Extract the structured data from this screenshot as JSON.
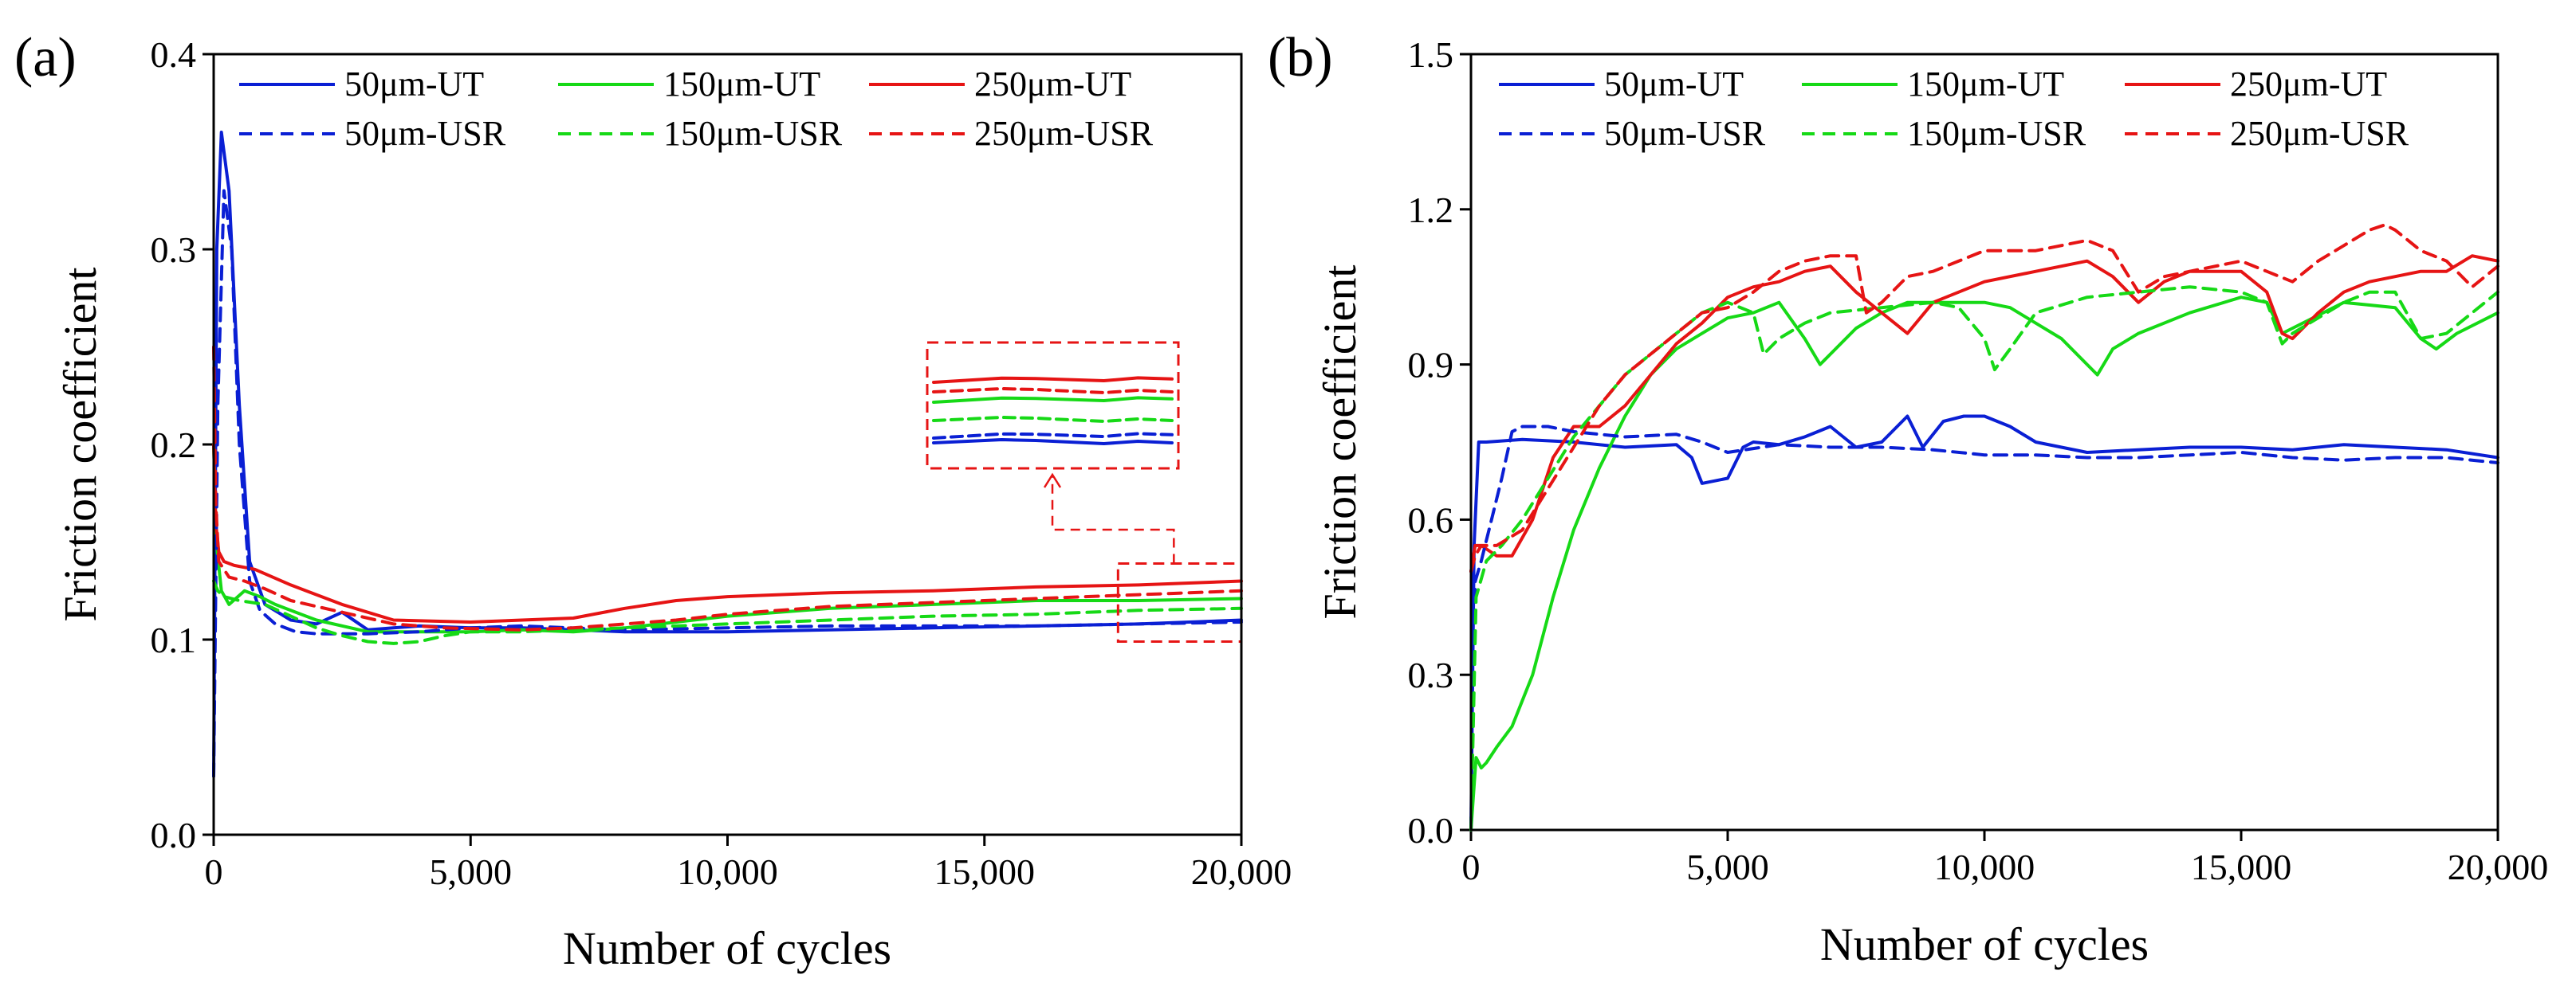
{
  "colors": {
    "UT50": "#0a1fd4",
    "UT150": "#16d916",
    "UT250": "#e61414",
    "annot": "#e61414"
  },
  "chart_data": [
    {
      "type": "line",
      "panel_label": "(a)",
      "xlabel": "Number of cycles",
      "ylabel": "Friction coefficient",
      "xlim": [
        0,
        20000
      ],
      "ylim": [
        0,
        0.4
      ],
      "xticks": [
        0,
        5000,
        10000,
        15000,
        20000
      ],
      "xtick_labels": [
        "0",
        "5,000",
        "10,000",
        "15,000",
        "20,000"
      ],
      "yticks": [
        0,
        0.1,
        0.2,
        0.3,
        0.4
      ],
      "ytick_labels": [
        "0.0",
        "0.1",
        "0.2",
        "0.3",
        "0.4"
      ],
      "legend_position": "top",
      "series": [
        {
          "name": "50μm-UT",
          "color": "#0a1fd4",
          "dash": "solid",
          "x": [
            0,
            60,
            150,
            300,
            500,
            700,
            1000,
            1500,
            2000,
            2500,
            3000,
            3500,
            4000,
            5000,
            6000,
            7000,
            8000,
            9000,
            10000,
            12000,
            14000,
            16000,
            18000,
            20000
          ],
          "y": [
            0.03,
            0.3,
            0.36,
            0.33,
            0.22,
            0.14,
            0.118,
            0.11,
            0.108,
            0.114,
            0.105,
            0.106,
            0.107,
            0.106,
            0.106,
            0.105,
            0.104,
            0.104,
            0.104,
            0.105,
            0.106,
            0.107,
            0.108,
            0.11
          ]
        },
        {
          "name": "150μm-UT",
          "color": "#16d916",
          "dash": "solid",
          "x": [
            0,
            50,
            150,
            300,
            600,
            900,
            1200,
            2000,
            3000,
            4000,
            5000,
            6000,
            7000,
            8000,
            9000,
            10000,
            12000,
            14000,
            16000,
            18000,
            20000
          ],
          "y": [
            0.2,
            0.15,
            0.125,
            0.118,
            0.125,
            0.122,
            0.118,
            0.11,
            0.104,
            0.104,
            0.104,
            0.105,
            0.104,
            0.106,
            0.109,
            0.112,
            0.116,
            0.118,
            0.12,
            0.12,
            0.121
          ]
        },
        {
          "name": "250μm-UT",
          "color": "#e61414",
          "dash": "solid",
          "x": [
            0,
            40,
            100,
            200,
            400,
            800,
            1500,
            2500,
            3500,
            5000,
            6000,
            7000,
            8000,
            9000,
            10000,
            12000,
            14000,
            16000,
            18000,
            20000
          ],
          "y": [
            0.2,
            0.16,
            0.145,
            0.14,
            0.138,
            0.136,
            0.128,
            0.118,
            0.11,
            0.109,
            0.11,
            0.111,
            0.116,
            0.12,
            0.122,
            0.124,
            0.125,
            0.127,
            0.128,
            0.13
          ]
        },
        {
          "name": "50μm-USR",
          "color": "#0a1fd4",
          "dash": "dashed",
          "x": [
            0,
            80,
            200,
            350,
            500,
            700,
            900,
            1200,
            1600,
            2000,
            3000,
            4000,
            5000,
            6000,
            8000,
            10000,
            12000,
            14000,
            16000,
            18000,
            20000
          ],
          "y": [
            0.03,
            0.22,
            0.33,
            0.3,
            0.2,
            0.13,
            0.115,
            0.108,
            0.104,
            0.103,
            0.103,
            0.104,
            0.106,
            0.107,
            0.105,
            0.106,
            0.107,
            0.107,
            0.107,
            0.108,
            0.109
          ]
        },
        {
          "name": "150μm-USR",
          "color": "#16d916",
          "dash": "dashed",
          "x": [
            0,
            80,
            200,
            500,
            1000,
            1500,
            2000,
            2500,
            3000,
            3500,
            4000,
            4500,
            5000,
            6000,
            7000,
            8000,
            9000,
            10000,
            12000,
            14000,
            16000,
            18000,
            20000
          ],
          "y": [
            0.13,
            0.125,
            0.122,
            0.12,
            0.118,
            0.112,
            0.106,
            0.102,
            0.099,
            0.098,
            0.099,
            0.102,
            0.104,
            0.104,
            0.105,
            0.106,
            0.107,
            0.108,
            0.11,
            0.112,
            0.113,
            0.115,
            0.116
          ]
        },
        {
          "name": "250μm-USR",
          "color": "#e61414",
          "dash": "dashed",
          "x": [
            0,
            40,
            100,
            300,
            600,
            1000,
            1500,
            2500,
            3500,
            4500,
            6000,
            7000,
            8000,
            9000,
            10000,
            12000,
            14000,
            16000,
            18000,
            20000
          ],
          "y": [
            0.25,
            0.17,
            0.14,
            0.132,
            0.13,
            0.126,
            0.12,
            0.114,
            0.108,
            0.106,
            0.105,
            0.106,
            0.108,
            0.11,
            0.113,
            0.117,
            0.119,
            0.121,
            0.123,
            0.125
          ]
        }
      ],
      "inset": {
        "note": "magnified view of the 17,500–20,000 cycle region",
        "order_top_to_bottom": [
          "250μm-UT",
          "250μm-USR",
          "150μm-UT",
          "150μm-USR",
          "50μm-USR",
          "50μm-UT"
        ]
      }
    },
    {
      "type": "line",
      "panel_label": "(b)",
      "xlabel": "Number of cycles",
      "ylabel": "Friction coefficient",
      "xlim": [
        0,
        20000
      ],
      "ylim": [
        0,
        1.5
      ],
      "xticks": [
        0,
        5000,
        10000,
        15000,
        20000
      ],
      "xtick_labels": [
        "0",
        "5,000",
        "10,000",
        "15,000",
        "20,000"
      ],
      "yticks": [
        0,
        0.3,
        0.6,
        0.9,
        1.2,
        1.5
      ],
      "ytick_labels": [
        "0.0",
        "0.3",
        "0.6",
        "0.9",
        "1.2",
        "1.5"
      ],
      "legend_position": "top",
      "series": [
        {
          "name": "50μm-UT",
          "color": "#0a1fd4",
          "dash": "solid",
          "x": [
            0,
            60,
            150,
            300,
            1000,
            2000,
            3000,
            4000,
            4300,
            4500,
            5000,
            5300,
            5500,
            6000,
            6500,
            7000,
            7500,
            8000,
            8500,
            8800,
            9200,
            9600,
            10000,
            10500,
            11000,
            12000,
            13000,
            14000,
            15000,
            16000,
            17000,
            18000,
            19000,
            20000
          ],
          "y": [
            0.0,
            0.55,
            0.75,
            0.75,
            0.755,
            0.75,
            0.74,
            0.745,
            0.72,
            0.67,
            0.68,
            0.74,
            0.75,
            0.745,
            0.76,
            0.78,
            0.74,
            0.75,
            0.8,
            0.74,
            0.79,
            0.8,
            0.8,
            0.78,
            0.75,
            0.73,
            0.735,
            0.74,
            0.74,
            0.735,
            0.745,
            0.74,
            0.735,
            0.72
          ]
        },
        {
          "name": "150μm-UT",
          "color": "#16d916",
          "dash": "solid",
          "x": [
            0,
            100,
            200,
            300,
            500,
            800,
            1200,
            1600,
            2000,
            2500,
            3000,
            3500,
            4000,
            4500,
            5000,
            5500,
            6000,
            6500,
            6800,
            7000,
            7500,
            8000,
            8500,
            9000,
            9500,
            10000,
            10500,
            11000,
            11500,
            12000,
            12200,
            12500,
            13000,
            14000,
            15000,
            15500,
            15800,
            16000,
            17000,
            18000,
            18500,
            18800,
            19200,
            20000
          ],
          "y": [
            0.0,
            0.14,
            0.12,
            0.13,
            0.16,
            0.2,
            0.3,
            0.45,
            0.58,
            0.7,
            0.8,
            0.88,
            0.93,
            0.96,
            0.99,
            1.0,
            1.02,
            0.95,
            0.9,
            0.92,
            0.97,
            1.0,
            1.02,
            1.02,
            1.02,
            1.02,
            1.01,
            0.98,
            0.95,
            0.9,
            0.88,
            0.93,
            0.96,
            1.0,
            1.03,
            1.02,
            0.96,
            0.97,
            1.02,
            1.01,
            0.95,
            0.93,
            0.96,
            1.0
          ]
        },
        {
          "name": "250μm-UT",
          "color": "#e61414",
          "dash": "solid",
          "x": [
            0,
            80,
            200,
            500,
            800,
            1200,
            1600,
            2000,
            2500,
            3000,
            3500,
            4000,
            4500,
            5000,
            5500,
            6000,
            6500,
            7000,
            7500,
            8000,
            8500,
            9000,
            10000,
            11000,
            12000,
            12500,
            13000,
            13500,
            14000,
            15000,
            15500,
            15800,
            16000,
            16500,
            17000,
            17500,
            18000,
            18500,
            19000,
            19500,
            20000
          ],
          "y": [
            0.5,
            0.55,
            0.55,
            0.53,
            0.53,
            0.6,
            0.72,
            0.78,
            0.78,
            0.82,
            0.88,
            0.94,
            0.98,
            1.03,
            1.05,
            1.06,
            1.08,
            1.09,
            1.04,
            1.0,
            0.96,
            1.02,
            1.06,
            1.08,
            1.1,
            1.07,
            1.02,
            1.06,
            1.08,
            1.08,
            1.04,
            0.96,
            0.95,
            1.0,
            1.04,
            1.06,
            1.07,
            1.08,
            1.08,
            1.11,
            1.1
          ]
        },
        {
          "name": "50μm-USR",
          "color": "#0a1fd4",
          "dash": "dashed",
          "x": [
            0,
            80,
            200,
            400,
            600,
            800,
            1000,
            1500,
            2000,
            3000,
            4000,
            4500,
            5000,
            6000,
            7000,
            8000,
            9000,
            10000,
            11000,
            12000,
            13000,
            14000,
            15000,
            16000,
            17000,
            18000,
            19000,
            20000
          ],
          "y": [
            0.0,
            0.48,
            0.52,
            0.6,
            0.68,
            0.77,
            0.78,
            0.78,
            0.77,
            0.76,
            0.765,
            0.75,
            0.73,
            0.745,
            0.74,
            0.74,
            0.735,
            0.725,
            0.725,
            0.72,
            0.72,
            0.725,
            0.73,
            0.72,
            0.715,
            0.72,
            0.72,
            0.71
          ]
        },
        {
          "name": "150μm-USR",
          "color": "#16d916",
          "dash": "dashed",
          "x": [
            0,
            100,
            300,
            600,
            1000,
            1500,
            2000,
            2500,
            3000,
            3500,
            4000,
            4500,
            5000,
            5500,
            5700,
            6000,
            6500,
            7000,
            8000,
            9000,
            9500,
            10000,
            10200,
            10500,
            11000,
            12000,
            13000,
            14000,
            15000,
            15500,
            15800,
            16000,
            17000,
            17500,
            18000,
            18500,
            19000,
            20000
          ],
          "y": [
            0.0,
            0.45,
            0.52,
            0.55,
            0.6,
            0.68,
            0.76,
            0.82,
            0.88,
            0.92,
            0.96,
            1.0,
            1.02,
            1.0,
            0.92,
            0.95,
            0.98,
            1.0,
            1.01,
            1.02,
            1.01,
            0.95,
            0.89,
            0.93,
            1.0,
            1.03,
            1.04,
            1.05,
            1.04,
            1.02,
            0.94,
            0.96,
            1.02,
            1.04,
            1.04,
            0.95,
            0.96,
            1.04
          ]
        },
        {
          "name": "250μm-USR",
          "color": "#e61414",
          "dash": "dashed",
          "x": [
            0,
            80,
            200,
            500,
            1000,
            1500,
            2000,
            2500,
            3000,
            3500,
            4000,
            4500,
            5000,
            5500,
            6000,
            6500,
            7000,
            7500,
            7700,
            8000,
            8500,
            9000,
            10000,
            11000,
            12000,
            12500,
            13000,
            13500,
            14000,
            15000,
            15500,
            16000,
            16500,
            17000,
            17500,
            17800,
            18000,
            18500,
            19000,
            19500,
            20000
          ],
          "y": [
            0.5,
            0.53,
            0.55,
            0.55,
            0.58,
            0.66,
            0.74,
            0.82,
            0.88,
            0.92,
            0.96,
            1.0,
            1.01,
            1.04,
            1.08,
            1.1,
            1.11,
            1.11,
            1.0,
            1.02,
            1.07,
            1.08,
            1.12,
            1.12,
            1.14,
            1.12,
            1.04,
            1.07,
            1.08,
            1.1,
            1.08,
            1.06,
            1.1,
            1.13,
            1.16,
            1.17,
            1.16,
            1.12,
            1.1,
            1.05,
            1.09
          ]
        }
      ]
    }
  ]
}
